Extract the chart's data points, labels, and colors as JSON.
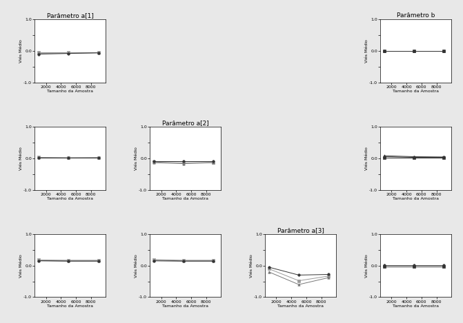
{
  "x_values": [
    1000,
    5000,
    9000
  ],
  "ylim": [
    -1.0,
    1.0
  ],
  "yticks": [
    -1.0,
    -0.5,
    0.0,
    0.5,
    1.0
  ],
  "ytick_labels": [
    "-1.0",
    "",
    "0.0",
    "",
    "1.0"
  ],
  "xticks": [
    2000,
    4000,
    6000,
    8000
  ],
  "xlabel": "Tamanho da Amostra",
  "ylabel": "Viés Médio",
  "background": "#e8e8e8",
  "panel_bg": "white",
  "row1_title": "Parâmetro a[1]",
  "row2_title": "Parâmetro a[2]",
  "row3_title": "Parâmetro a[3]",
  "colb_title": "Parâmetro b",
  "plots": {
    "row1_col1": {
      "lines": [
        {
          "y": [
            -0.05,
            -0.05,
            -0.05
          ],
          "marker": "s",
          "color": "#999999",
          "lw": 0.7
        },
        {
          "y": [
            -0.07,
            -0.07,
            -0.06
          ],
          "marker": "^",
          "color": "#777777",
          "lw": 0.7
        },
        {
          "y": [
            -0.1,
            -0.08,
            -0.06
          ],
          "marker": "o",
          "color": "#333333",
          "lw": 0.7
        }
      ]
    },
    "row1_col4": {
      "lines": [
        {
          "y": [
            0.01,
            0.01,
            0.01
          ],
          "marker": "s",
          "color": "#333333",
          "lw": 0.7
        },
        {
          "y": [
            0.01,
            0.01,
            0.01
          ],
          "marker": "^",
          "color": "#333333",
          "lw": 0.7
        },
        {
          "y": [
            0.01,
            0.01,
            0.01
          ],
          "marker": "o",
          "color": "#333333",
          "lw": 0.7
        }
      ]
    },
    "row2_col1": {
      "lines": [
        {
          "y": [
            0.03,
            0.02,
            0.02
          ],
          "marker": "s",
          "color": "#999999",
          "lw": 0.7
        },
        {
          "y": [
            0.02,
            0.01,
            0.02
          ],
          "marker": "^",
          "color": "#777777",
          "lw": 0.7
        },
        {
          "y": [
            0.01,
            0.01,
            0.01
          ],
          "marker": "o",
          "color": "#333333",
          "lw": 0.7
        }
      ]
    },
    "row2_col2": {
      "lines": [
        {
          "y": [
            -0.12,
            -0.14,
            -0.13
          ],
          "marker": "s",
          "color": "#999999",
          "lw": 0.7
        },
        {
          "y": [
            -0.14,
            -0.17,
            -0.14
          ],
          "marker": "^",
          "color": "#777777",
          "lw": 0.7
        },
        {
          "y": [
            -0.1,
            -0.1,
            -0.1
          ],
          "marker": "o",
          "color": "#333333",
          "lw": 0.7
        }
      ]
    },
    "row2_col4": {
      "lines": [
        {
          "y": [
            0.02,
            0.02,
            0.02
          ],
          "marker": "s",
          "color": "#333333",
          "lw": 0.7
        },
        {
          "y": [
            0.08,
            0.05,
            0.04
          ],
          "marker": "^",
          "color": "#333333",
          "lw": 0.7
        },
        {
          "y": [
            0.05,
            0.03,
            0.03
          ],
          "marker": "o",
          "color": "#333333",
          "lw": 0.7
        }
      ]
    },
    "row3_col1": {
      "lines": [
        {
          "y": [
            0.18,
            0.17,
            0.17
          ],
          "marker": "s",
          "color": "#999999",
          "lw": 0.7
        },
        {
          "y": [
            0.16,
            0.15,
            0.15
          ],
          "marker": "^",
          "color": "#777777",
          "lw": 0.7
        },
        {
          "y": [
            0.15,
            0.14,
            0.14
          ],
          "marker": "o",
          "color": "#333333",
          "lw": 0.7
        }
      ]
    },
    "row3_col2": {
      "lines": [
        {
          "y": [
            0.19,
            0.17,
            0.17
          ],
          "marker": "s",
          "color": "#999999",
          "lw": 0.7
        },
        {
          "y": [
            0.17,
            0.15,
            0.15
          ],
          "marker": "^",
          "color": "#777777",
          "lw": 0.7
        },
        {
          "y": [
            0.15,
            0.14,
            0.14
          ],
          "marker": "o",
          "color": "#333333",
          "lw": 0.7
        }
      ]
    },
    "row3_col3": {
      "lines": [
        {
          "y": [
            -0.1,
            -0.48,
            -0.33
          ],
          "marker": "s",
          "color": "#999999",
          "lw": 0.7
        },
        {
          "y": [
            -0.2,
            -0.6,
            -0.38
          ],
          "marker": "^",
          "color": "#777777",
          "lw": 0.7
        },
        {
          "y": [
            -0.05,
            -0.3,
            -0.28
          ],
          "marker": "o",
          "color": "#333333",
          "lw": 0.7
        }
      ]
    },
    "row3_col4": {
      "lines": [
        {
          "y": [
            -0.03,
            -0.03,
            -0.03
          ],
          "marker": "s",
          "color": "#333333",
          "lw": 0.7
        },
        {
          "y": [
            0.02,
            0.02,
            0.02
          ],
          "marker": "^",
          "color": "#333333",
          "lw": 0.7
        },
        {
          "y": [
            0.01,
            0.01,
            0.01
          ],
          "marker": "o",
          "color": "#333333",
          "lw": 0.7
        }
      ]
    }
  }
}
